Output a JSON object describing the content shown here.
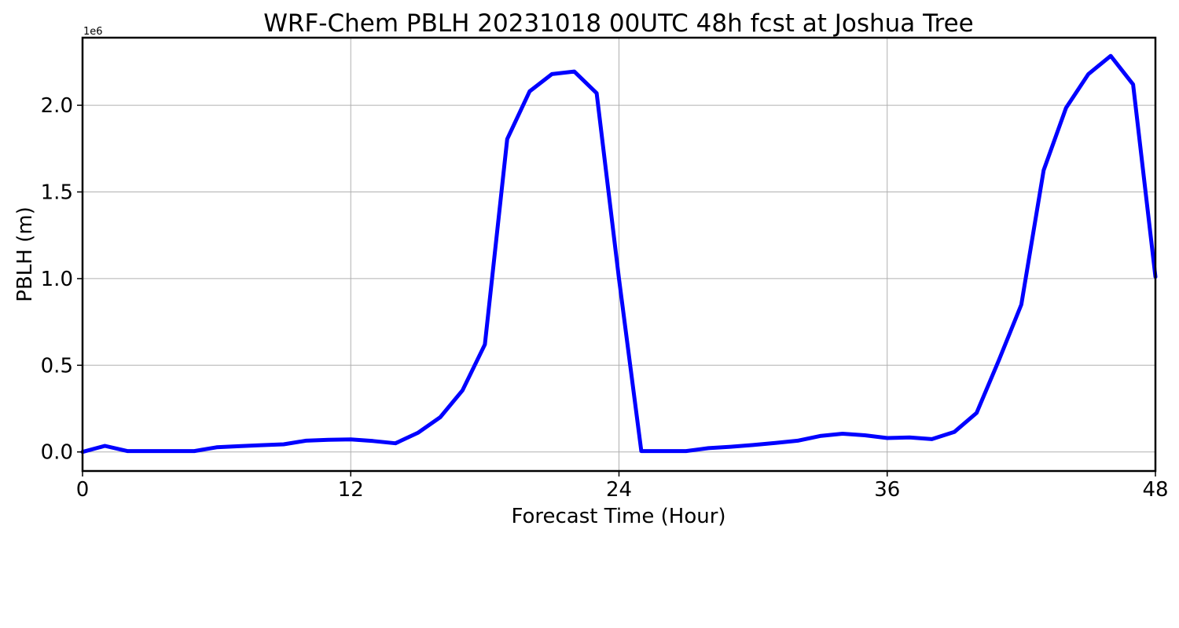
{
  "chart_data": {
    "type": "line",
    "title": "WRF-Chem PBLH  20231018 00UTC 48h fcst at Joshua Tree",
    "xlabel": "Forecast Time (Hour)",
    "ylabel": "PBLH  (m)",
    "y_offset_label": "1e6",
    "y_scale_factor": 1000000,
    "xlim": [
      0,
      48
    ],
    "ylim": [
      -110000,
      2390000
    ],
    "xticks": [
      0,
      12,
      24,
      36,
      48
    ],
    "xtick_labels": [
      "0",
      "12",
      "24",
      "36",
      "48"
    ],
    "yticks": [
      0,
      500000,
      1000000,
      1500000,
      2000000
    ],
    "ytick_labels": [
      "0.0",
      "0.5",
      "1.0",
      "1.5",
      "2.0"
    ],
    "grid": true,
    "line_color": "#0000ff",
    "series": [
      {
        "x": [
          0,
          1,
          2,
          3,
          4,
          5,
          6,
          7,
          8,
          9,
          10,
          11,
          12,
          13,
          14,
          15,
          16,
          17,
          18,
          19,
          20,
          21,
          22,
          23,
          24,
          25,
          26,
          27,
          28,
          29,
          30,
          31,
          32,
          33,
          34,
          35,
          36,
          37,
          38,
          39,
          40,
          41,
          42,
          43,
          44,
          45,
          46,
          47,
          48
        ],
        "y": [
          0,
          35000,
          5000,
          5000,
          5000,
          5000,
          27000,
          33000,
          39000,
          44000,
          65000,
          70000,
          72000,
          63000,
          50000,
          110000,
          200000,
          355000,
          620000,
          1805000,
          2080000,
          2180000,
          2195000,
          2070000,
          1000000,
          5000,
          5000,
          5000,
          22000,
          30000,
          40000,
          52000,
          65000,
          92000,
          105000,
          96000,
          80000,
          84000,
          74000,
          115000,
          225000,
          530000,
          850000,
          1625000,
          1985000,
          2180000,
          2285000,
          2120000,
          1010000
        ]
      }
    ]
  }
}
